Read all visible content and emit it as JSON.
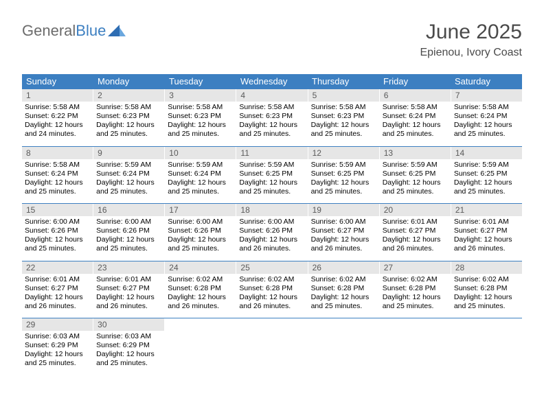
{
  "brand": {
    "part1": "General",
    "part2": "Blue"
  },
  "title": "June 2025",
  "location": "Epienou, Ivory Coast",
  "colors": {
    "header_bg": "#3c7fc1",
    "header_text": "#ffffff",
    "datenum_bg": "#e6e6e6",
    "rule": "#3c7fc1",
    "text": "#000000",
    "brand_gray": "#6b6b6b",
    "brand_blue": "#3c7fc1"
  },
  "day_names": [
    "Sunday",
    "Monday",
    "Tuesday",
    "Wednesday",
    "Thursday",
    "Friday",
    "Saturday"
  ],
  "weeks": [
    [
      {
        "n": "1",
        "sr": "Sunrise: 5:58 AM",
        "ss": "Sunset: 6:22 PM",
        "dl": "Daylight: 12 hours and 24 minutes."
      },
      {
        "n": "2",
        "sr": "Sunrise: 5:58 AM",
        "ss": "Sunset: 6:23 PM",
        "dl": "Daylight: 12 hours and 25 minutes."
      },
      {
        "n": "3",
        "sr": "Sunrise: 5:58 AM",
        "ss": "Sunset: 6:23 PM",
        "dl": "Daylight: 12 hours and 25 minutes."
      },
      {
        "n": "4",
        "sr": "Sunrise: 5:58 AM",
        "ss": "Sunset: 6:23 PM",
        "dl": "Daylight: 12 hours and 25 minutes."
      },
      {
        "n": "5",
        "sr": "Sunrise: 5:58 AM",
        "ss": "Sunset: 6:23 PM",
        "dl": "Daylight: 12 hours and 25 minutes."
      },
      {
        "n": "6",
        "sr": "Sunrise: 5:58 AM",
        "ss": "Sunset: 6:24 PM",
        "dl": "Daylight: 12 hours and 25 minutes."
      },
      {
        "n": "7",
        "sr": "Sunrise: 5:58 AM",
        "ss": "Sunset: 6:24 PM",
        "dl": "Daylight: 12 hours and 25 minutes."
      }
    ],
    [
      {
        "n": "8",
        "sr": "Sunrise: 5:58 AM",
        "ss": "Sunset: 6:24 PM",
        "dl": "Daylight: 12 hours and 25 minutes."
      },
      {
        "n": "9",
        "sr": "Sunrise: 5:59 AM",
        "ss": "Sunset: 6:24 PM",
        "dl": "Daylight: 12 hours and 25 minutes."
      },
      {
        "n": "10",
        "sr": "Sunrise: 5:59 AM",
        "ss": "Sunset: 6:24 PM",
        "dl": "Daylight: 12 hours and 25 minutes."
      },
      {
        "n": "11",
        "sr": "Sunrise: 5:59 AM",
        "ss": "Sunset: 6:25 PM",
        "dl": "Daylight: 12 hours and 25 minutes."
      },
      {
        "n": "12",
        "sr": "Sunrise: 5:59 AM",
        "ss": "Sunset: 6:25 PM",
        "dl": "Daylight: 12 hours and 25 minutes."
      },
      {
        "n": "13",
        "sr": "Sunrise: 5:59 AM",
        "ss": "Sunset: 6:25 PM",
        "dl": "Daylight: 12 hours and 25 minutes."
      },
      {
        "n": "14",
        "sr": "Sunrise: 5:59 AM",
        "ss": "Sunset: 6:25 PM",
        "dl": "Daylight: 12 hours and 25 minutes."
      }
    ],
    [
      {
        "n": "15",
        "sr": "Sunrise: 6:00 AM",
        "ss": "Sunset: 6:26 PM",
        "dl": "Daylight: 12 hours and 25 minutes."
      },
      {
        "n": "16",
        "sr": "Sunrise: 6:00 AM",
        "ss": "Sunset: 6:26 PM",
        "dl": "Daylight: 12 hours and 25 minutes."
      },
      {
        "n": "17",
        "sr": "Sunrise: 6:00 AM",
        "ss": "Sunset: 6:26 PM",
        "dl": "Daylight: 12 hours and 25 minutes."
      },
      {
        "n": "18",
        "sr": "Sunrise: 6:00 AM",
        "ss": "Sunset: 6:26 PM",
        "dl": "Daylight: 12 hours and 26 minutes."
      },
      {
        "n": "19",
        "sr": "Sunrise: 6:00 AM",
        "ss": "Sunset: 6:27 PM",
        "dl": "Daylight: 12 hours and 26 minutes."
      },
      {
        "n": "20",
        "sr": "Sunrise: 6:01 AM",
        "ss": "Sunset: 6:27 PM",
        "dl": "Daylight: 12 hours and 26 minutes."
      },
      {
        "n": "21",
        "sr": "Sunrise: 6:01 AM",
        "ss": "Sunset: 6:27 PM",
        "dl": "Daylight: 12 hours and 26 minutes."
      }
    ],
    [
      {
        "n": "22",
        "sr": "Sunrise: 6:01 AM",
        "ss": "Sunset: 6:27 PM",
        "dl": "Daylight: 12 hours and 26 minutes."
      },
      {
        "n": "23",
        "sr": "Sunrise: 6:01 AM",
        "ss": "Sunset: 6:27 PM",
        "dl": "Daylight: 12 hours and 26 minutes."
      },
      {
        "n": "24",
        "sr": "Sunrise: 6:02 AM",
        "ss": "Sunset: 6:28 PM",
        "dl": "Daylight: 12 hours and 26 minutes."
      },
      {
        "n": "25",
        "sr": "Sunrise: 6:02 AM",
        "ss": "Sunset: 6:28 PM",
        "dl": "Daylight: 12 hours and 26 minutes."
      },
      {
        "n": "26",
        "sr": "Sunrise: 6:02 AM",
        "ss": "Sunset: 6:28 PM",
        "dl": "Daylight: 12 hours and 25 minutes."
      },
      {
        "n": "27",
        "sr": "Sunrise: 6:02 AM",
        "ss": "Sunset: 6:28 PM",
        "dl": "Daylight: 12 hours and 25 minutes."
      },
      {
        "n": "28",
        "sr": "Sunrise: 6:02 AM",
        "ss": "Sunset: 6:28 PM",
        "dl": "Daylight: 12 hours and 25 minutes."
      }
    ],
    [
      {
        "n": "29",
        "sr": "Sunrise: 6:03 AM",
        "ss": "Sunset: 6:29 PM",
        "dl": "Daylight: 12 hours and 25 minutes."
      },
      {
        "n": "30",
        "sr": "Sunrise: 6:03 AM",
        "ss": "Sunset: 6:29 PM",
        "dl": "Daylight: 12 hours and 25 minutes."
      },
      {
        "empty": true
      },
      {
        "empty": true
      },
      {
        "empty": true
      },
      {
        "empty": true
      },
      {
        "empty": true
      }
    ]
  ]
}
